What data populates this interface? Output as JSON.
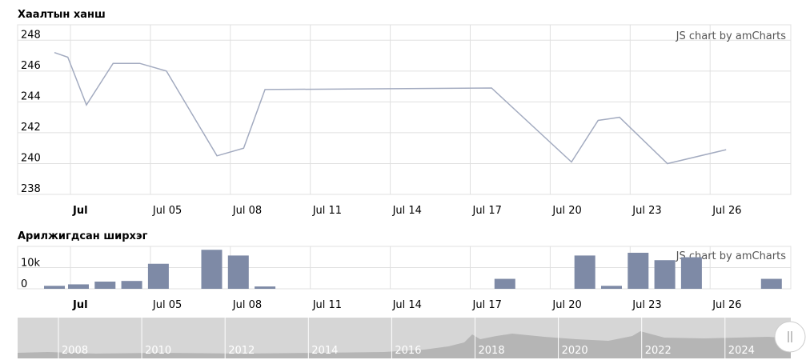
{
  "chart_data": [
    {
      "type": "line",
      "title": "Хаалтын ханш",
      "credit": "JS chart by amCharts",
      "colors": {
        "line": "#a3abc0",
        "grid": "#e0e0e0"
      },
      "ylim": [
        238,
        249
      ],
      "yticks": [
        "238",
        "240",
        "242",
        "244",
        "246",
        "248"
      ],
      "xticks": [
        "Jul",
        "Jul 05",
        "Jul 08",
        "Jul 11",
        "Jul 14",
        "Jul 17",
        "Jul 20",
        "Jul 23",
        "Jul 26"
      ],
      "x": [
        -0.6,
        -0.1,
        0.6,
        1.6,
        2.6,
        3.6,
        5.5,
        6.5,
        7.3,
        15.8,
        18.8,
        19.8,
        20.6,
        22.4,
        24.6
      ],
      "values": [
        247.2,
        246.9,
        243.8,
        246.5,
        246.5,
        246.0,
        240.5,
        241.0,
        244.8,
        244.9,
        240.1,
        242.8,
        243.0,
        240.0,
        240.9
      ]
    },
    {
      "type": "bar",
      "title": "Арилжигдсан ширхэг",
      "credit": "JS chart by amCharts",
      "colors": {
        "bar": "#7e8aa6",
        "grid": "#e0e0e0"
      },
      "ylim": [
        0,
        20000
      ],
      "yticks": [
        "0",
        "10k"
      ],
      "xticks": [
        "Jul",
        "Jul 05",
        "Jul 08",
        "Jul 11",
        "Jul 14",
        "Jul 17",
        "Jul 20",
        "Jul 23",
        "Jul 26"
      ],
      "x": [
        -0.6,
        0.3,
        1.3,
        2.3,
        3.3,
        5.3,
        6.3,
        7.3,
        16.3,
        19.3,
        20.3,
        21.3,
        22.3,
        23.3,
        26.3
      ],
      "values": [
        1400,
        2100,
        3400,
        3700,
        11800,
        18400,
        15700,
        1100,
        4700,
        15700,
        1400,
        17000,
        13500,
        14900,
        4700
      ]
    }
  ],
  "scrollbar": {
    "years": [
      "2008",
      "2010",
      "2012",
      "2014",
      "2016",
      "2018",
      "2020",
      "2022",
      "2024"
    ],
    "grip_icon": "grip-lines-icon"
  }
}
